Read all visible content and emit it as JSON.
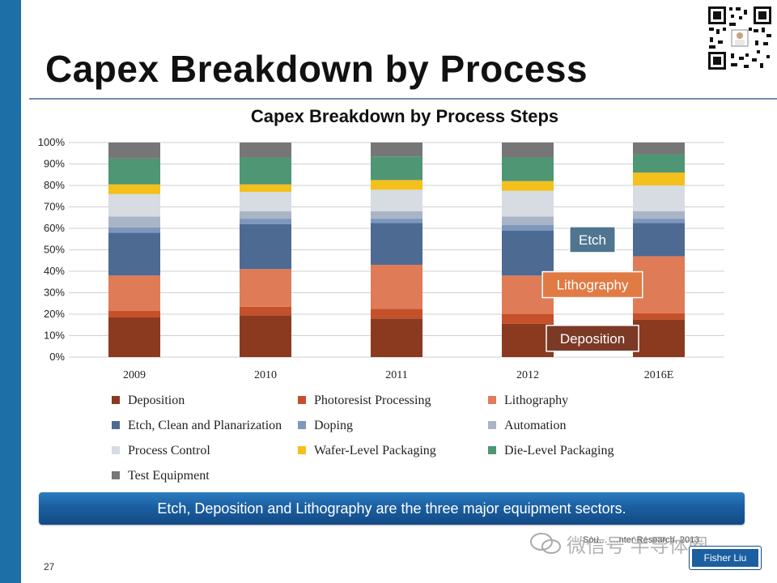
{
  "slide": {
    "title": "Capex Breakdown by Process",
    "page_number": "27",
    "banner": "Etch, Deposition and Lithography are the three major equipment sectors.",
    "source": "Sou… …nter Research, 2013",
    "watermark": "微信号 半导体圈",
    "author": "Fisher Liu"
  },
  "chart_data": {
    "type": "bar",
    "stacked": true,
    "title": "Capex Breakdown by Process Steps",
    "categories": [
      "2009",
      "2010",
      "2011",
      "2012",
      "2016E"
    ],
    "ylim": [
      0,
      100
    ],
    "yticks": [
      "0%",
      "10%",
      "20%",
      "30%",
      "40%",
      "50%",
      "60%",
      "70%",
      "80%",
      "90%",
      "100%"
    ],
    "grid": true,
    "legend_position": "bottom",
    "series": [
      {
        "name": "Deposition",
        "color": "#8b3a1f",
        "values": [
          18.5,
          19.5,
          18,
          15.5,
          17.5
        ]
      },
      {
        "name": "Photoresist Processing",
        "color": "#c5512b",
        "values": [
          3,
          4,
          4.5,
          4.5,
          3
        ]
      },
      {
        "name": "Lithography",
        "color": "#e07b57",
        "values": [
          16.5,
          17.5,
          20.5,
          18,
          26.5
        ]
      },
      {
        "name": "Etch, Clean and Planarization",
        "color": "#4d6a93",
        "values": [
          20,
          21,
          19.5,
          21,
          15.5
        ]
      },
      {
        "name": "Doping",
        "color": "#7d97bd",
        "values": [
          2.5,
          2.5,
          2,
          2.5,
          2
        ]
      },
      {
        "name": "Automation",
        "color": "#a9b5c6",
        "values": [
          5,
          3.5,
          3.5,
          4,
          3.5
        ]
      },
      {
        "name": "Process Control",
        "color": "#d7dbe2",
        "values": [
          10.5,
          9,
          10,
          12,
          12
        ]
      },
      {
        "name": "Wafer-Level Packaging",
        "color": "#f3c01c",
        "values": [
          4.5,
          3.5,
          4.5,
          4.5,
          6
        ]
      },
      {
        "name": "Die-Level Packaging",
        "color": "#4e9674",
        "values": [
          12,
          12.5,
          11,
          11,
          8.5
        ]
      },
      {
        "name": "Test Equipment",
        "color": "#767676",
        "values": [
          7.5,
          7,
          6.5,
          7,
          5.5
        ]
      }
    ],
    "callouts": [
      {
        "label": "Etch",
        "color": "#4f7590",
        "series": "Etch, Clean and Planarization"
      },
      {
        "label": "Lithography",
        "color": "#e07b44",
        "series": "Lithography"
      },
      {
        "label": "Deposition",
        "color": "#7b3a26",
        "series": "Deposition"
      }
    ]
  }
}
